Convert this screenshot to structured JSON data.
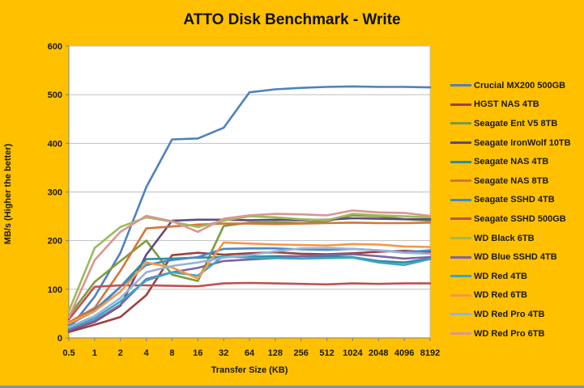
{
  "chart_data": {
    "type": "line",
    "title": "ATTO Disk Benchmark - Write",
    "xlabel": "Transfer Size (KB)",
    "ylabel": "MB/s (Higher the better)",
    "x_categories": [
      "0.5",
      "1",
      "2",
      "4",
      "8",
      "16",
      "32",
      "64",
      "128",
      "256",
      "512",
      "1024",
      "2048",
      "4096",
      "8192"
    ],
    "y_ticks": [
      0,
      100,
      200,
      300,
      400,
      500,
      600
    ],
    "ylim": [
      0,
      600
    ],
    "grid": "horizontal",
    "legend_position": "right",
    "series": [
      {
        "name": "Crucial MX200 500GB",
        "color": "#4F81BD",
        "values": [
          18,
          85,
          175,
          310,
          408,
          410,
          432,
          505,
          511,
          514,
          516,
          517,
          516,
          516,
          515
        ]
      },
      {
        "name": "HGST NAS 4TB",
        "color": "#9E413E",
        "values": [
          12,
          27,
          43,
          88,
          170,
          175,
          171,
          174,
          176,
          173,
          172,
          174,
          177,
          179,
          177
        ]
      },
      {
        "name": "Seagate Ent V5 8TB",
        "color": "#7E9B3F",
        "values": [
          45,
          115,
          158,
          200,
          130,
          117,
          230,
          237,
          238,
          236,
          240,
          252,
          250,
          244,
          241
        ]
      },
      {
        "name": "Seagate IronWolf 10TB",
        "color": "#604A7B",
        "values": [
          15,
          33,
          66,
          171,
          241,
          243,
          243,
          242,
          243,
          242,
          243,
          246,
          245,
          244,
          244
        ]
      },
      {
        "name": "Seagate NAS 4TB",
        "color": "#2E8B9E",
        "values": [
          28,
          55,
          105,
          162,
          163,
          165,
          166,
          167,
          168,
          168,
          167,
          166,
          158,
          155,
          163
        ]
      },
      {
        "name": "Seagate NAS 8TB",
        "color": "#D2763A",
        "values": [
          32,
          62,
          138,
          225,
          229,
          233,
          235,
          235,
          234,
          235,
          236,
          237,
          236,
          236,
          237
        ]
      },
      {
        "name": "Seagate SSHD 4TB",
        "color": "#4A89C8",
        "values": [
          26,
          58,
          105,
          150,
          160,
          166,
          183,
          184,
          184,
          182,
          181,
          183,
          180,
          176,
          180
        ]
      },
      {
        "name": "Seagate SSHD 500GB",
        "color": "#C0504D",
        "values": [
          38,
          105,
          108,
          108,
          107,
          106,
          112,
          113,
          112,
          111,
          110,
          112,
          111,
          112,
          112
        ]
      },
      {
        "name": "WD Black 6TB",
        "color": "#9BBB59",
        "values": [
          55,
          185,
          228,
          248,
          239,
          228,
          241,
          250,
          248,
          244,
          242,
          255,
          252,
          250,
          248
        ]
      },
      {
        "name": "WD Blue SSHD 4TB",
        "color": "#8064A2",
        "values": [
          16,
          35,
          68,
          121,
          135,
          144,
          158,
          161,
          164,
          168,
          170,
          172,
          168,
          163,
          166
        ]
      },
      {
        "name": "WD Red 4TB",
        "color": "#3BA6C4",
        "values": [
          20,
          40,
          75,
          118,
          135,
          128,
          168,
          165,
          164,
          163,
          164,
          165,
          155,
          150,
          162
        ]
      },
      {
        "name": "WD Red 6TB",
        "color": "#F79646",
        "values": [
          30,
          55,
          95,
          155,
          145,
          122,
          196,
          194,
          192,
          191,
          190,
          193,
          192,
          188,
          187
        ]
      },
      {
        "name": "WD Red Pro 4TB",
        "color": "#95B3D7",
        "values": [
          22,
          45,
          82,
          135,
          148,
          155,
          165,
          170,
          178,
          184,
          185,
          183,
          180,
          175,
          173
        ]
      },
      {
        "name": "WD Red Pro 6TB",
        "color": "#D99694",
        "values": [
          42,
          160,
          218,
          251,
          240,
          218,
          245,
          252,
          255,
          254,
          252,
          262,
          258,
          257,
          251
        ]
      }
    ]
  },
  "colors": {
    "background": "#FFC000",
    "plot_background": "#FFFFFF",
    "gridline": "#BFBFBF",
    "axis": "#808080",
    "text": "#1A1A1A",
    "bottom_edge": "#7E93A6"
  }
}
